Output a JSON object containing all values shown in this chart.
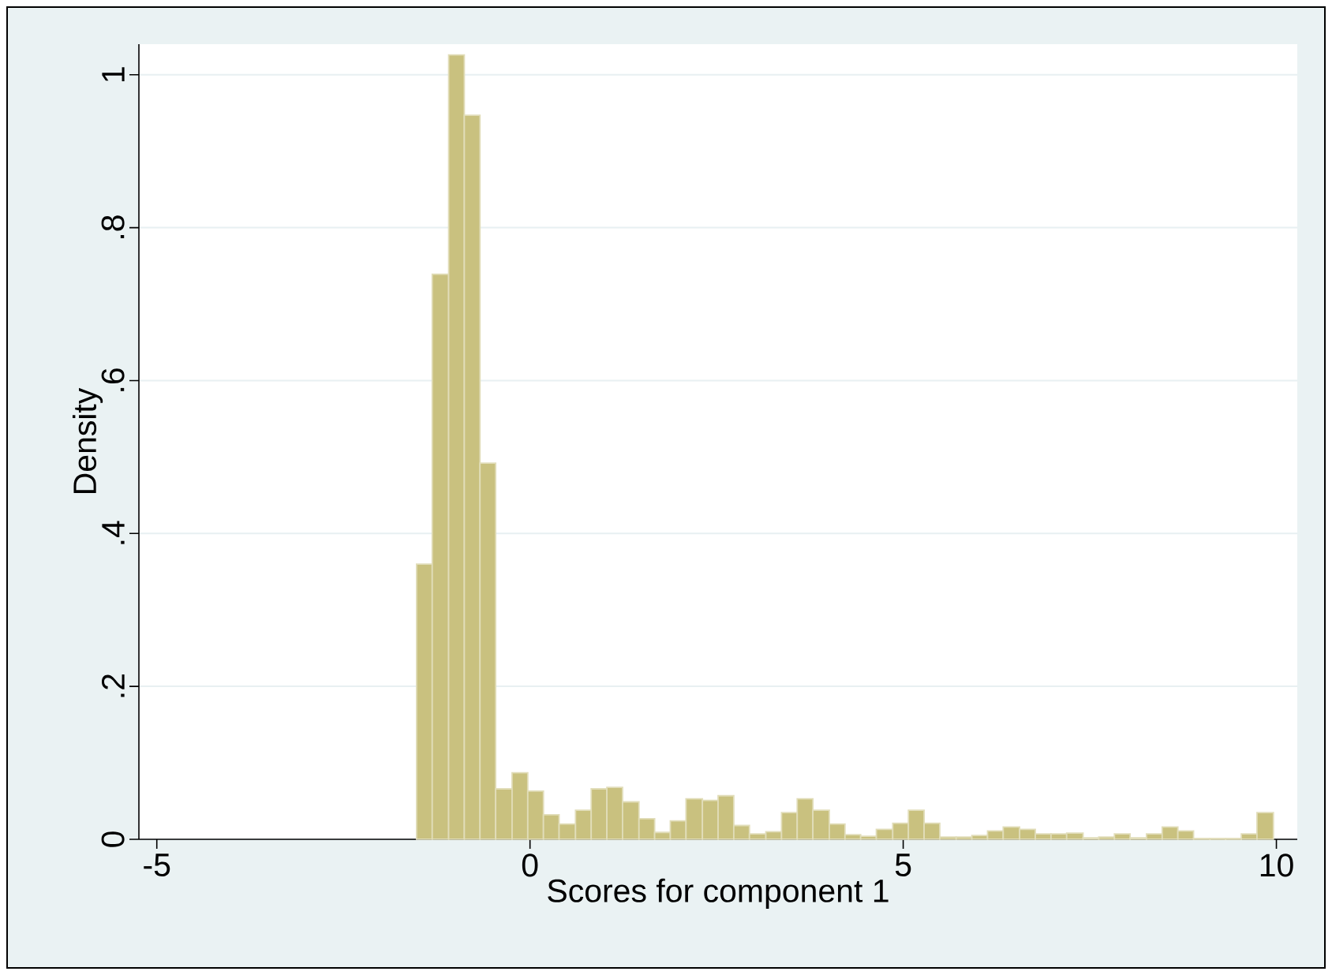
{
  "chart_data": {
    "type": "histogram",
    "xlabel": "Scores for component 1",
    "ylabel": "Density",
    "bins": [
      -1.52,
      -1.31,
      -1.09,
      -0.88,
      -0.67,
      -0.46,
      -0.24,
      -0.03,
      0.18,
      0.39,
      0.61,
      0.82,
      1.03,
      1.24,
      1.46,
      1.67,
      1.88,
      2.09,
      2.31,
      2.52,
      2.73,
      2.94,
      3.16,
      3.37,
      3.58,
      3.79,
      4.01,
      4.22,
      4.43,
      4.64,
      4.86,
      5.07,
      5.28,
      5.49,
      5.71,
      5.92,
      6.13,
      6.34,
      6.56,
      6.77,
      6.98,
      7.19,
      7.41,
      7.62,
      7.83,
      8.04,
      8.26,
      8.47,
      8.68,
      8.89,
      9.11,
      9.32,
      9.53,
      9.74,
      9.96
    ],
    "values": [
      0.36,
      0.739,
      1.026,
      0.947,
      0.492,
      0.066,
      0.087,
      0.063,
      0.032,
      0.02,
      0.038,
      0.066,
      0.068,
      0.049,
      0.027,
      0.009,
      0.024,
      0.053,
      0.051,
      0.057,
      0.018,
      0.007,
      0.01,
      0.035,
      0.053,
      0.038,
      0.02,
      0.006,
      0.004,
      0.013,
      0.021,
      0.038,
      0.021,
      0.003,
      0.003,
      0.005,
      0.011,
      0.016,
      0.013,
      0.007,
      0.007,
      0.008,
      0.002,
      0.003,
      0.007,
      0.002,
      0.007,
      0.016,
      0.011,
      0.001,
      0.001,
      0.001,
      0.007,
      0.035
    ],
    "color": "#c9c17f",
    "xlim": [
      -5.24,
      10.28
    ],
    "ylim": [
      0,
      1.04
    ],
    "xticks": [
      -5,
      0,
      5,
      10
    ],
    "yticks": [
      0,
      {
        "value": 0.2,
        "label": ".2"
      },
      {
        "value": 0.4,
        "label": ".4"
      },
      {
        "value": 0.6,
        "label": ".6"
      },
      {
        "value": 0.8,
        "label": ".8"
      },
      1
    ],
    "grid": "y"
  }
}
